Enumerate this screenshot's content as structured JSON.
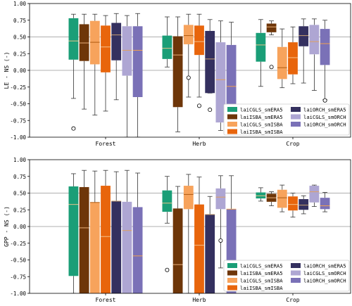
{
  "chart_data": [
    {
      "type": "boxplot",
      "ylabel": "LE - NS (-)",
      "ylim": [
        -1.0,
        1.0
      ],
      "yticks": [
        "1.00",
        "0.75",
        "0.50",
        "0.25",
        "0.00",
        "-0.25",
        "-0.50",
        "-0.75",
        "-1.00"
      ],
      "reference_lines": [
        0.5,
        0.0
      ],
      "categories": [
        "Forest",
        "Herb",
        "Crop"
      ],
      "legend": {
        "placement": "lower-right",
        "columns": 2
      },
      "series": [
        {
          "name": "laiCGLS_smERA5",
          "color": "#1a9e77",
          "median_color": "#e8c28a",
          "boxes": [
            {
              "whislo": -0.42,
              "q1": 0.16,
              "med": 0.44,
              "q3": 0.78,
              "whishi": 0.84,
              "fliers": [
                -0.87
              ]
            },
            {
              "whislo": 0.05,
              "q1": 0.17,
              "med": 0.33,
              "q3": 0.52,
              "whishi": 0.8,
              "fliers": []
            },
            {
              "whislo": -0.24,
              "q1": 0.13,
              "med": 0.38,
              "q3": 0.56,
              "whishi": 0.76,
              "fliers": []
            }
          ]
        },
        {
          "name": "laiISBA_smERA5",
          "color": "#6e3609",
          "median_color": "#e8b07a",
          "boxes": [
            {
              "whislo": -0.58,
              "q1": 0.14,
              "med": 0.41,
              "q3": 0.69,
              "whishi": 0.84,
              "fliers": []
            },
            {
              "whislo": -0.92,
              "q1": -0.55,
              "med": 0.23,
              "q3": 0.51,
              "whishi": 0.8,
              "fliers": []
            },
            {
              "whislo": 0.53,
              "q1": 0.57,
              "med": 0.65,
              "q3": 0.7,
              "whishi": 0.74,
              "fliers": [
                0.05
              ]
            }
          ]
        },
        {
          "name": "laiCGLS_smISBA",
          "color": "#f7a35c",
          "median_color": "#b05a10",
          "boxes": [
            {
              "whislo": -0.67,
              "q1": 0.09,
              "med": 0.42,
              "q3": 0.74,
              "whishi": 0.84,
              "fliers": []
            },
            {
              "whislo": -0.4,
              "q1": 0.39,
              "med": 0.52,
              "q3": 0.68,
              "whishi": 0.84,
              "fliers": [
                -0.11
              ]
            },
            {
              "whislo": -0.26,
              "q1": -0.13,
              "med": 0.04,
              "q3": 0.35,
              "whishi": 0.62,
              "fliers": []
            }
          ]
        },
        {
          "name": "laiISBA_smISBA",
          "color": "#e8650c",
          "median_color": "#f5c08a",
          "boxes": [
            {
              "whislo": -0.61,
              "q1": -0.03,
              "med": 0.35,
              "q3": 0.67,
              "whishi": 0.82,
              "fliers": []
            },
            {
              "whislo": -0.4,
              "q1": 0.23,
              "med": 0.43,
              "q3": 0.67,
              "whishi": 0.84,
              "fliers": [
                -0.53
              ]
            },
            {
              "whislo": -0.2,
              "q1": -0.06,
              "med": 0.19,
              "q3": 0.42,
              "whishi": 0.65,
              "fliers": []
            }
          ]
        },
        {
          "name": "laiORCH_smERA5",
          "color": "#34305f",
          "median_color": "#c8a070",
          "boxes": [
            {
              "whislo": -0.44,
              "q1": 0.15,
              "med": 0.53,
              "q3": 0.71,
              "whishi": 0.85,
              "fliers": []
            },
            {
              "whislo": -0.34,
              "q1": -0.34,
              "med": 0.17,
              "q3": 0.59,
              "whishi": 0.76,
              "fliers": [
                -0.59
              ]
            },
            {
              "whislo": -0.19,
              "q1": 0.36,
              "med": 0.52,
              "q3": 0.66,
              "whishi": 0.77,
              "fliers": []
            }
          ]
        },
        {
          "name": "laiCGLS_smORCH",
          "color": "#aea6d3",
          "median_color": "#e0a060",
          "boxes": [
            {
              "whislo": -1.0,
              "q1": -0.08,
              "med": 0.3,
              "q3": 0.66,
              "whishi": 0.82,
              "fliers": []
            },
            {
              "whislo": -0.9,
              "q1": -0.78,
              "med": -0.14,
              "q3": 0.42,
              "whishi": 0.74,
              "fliers": []
            },
            {
              "whislo": -0.3,
              "q1": 0.24,
              "med": 0.43,
              "q3": 0.68,
              "whishi": 0.77,
              "fliers": []
            }
          ]
        },
        {
          "name": "laiORCH_smORCH",
          "color": "#7a71b7",
          "median_color": "#f0a050",
          "boxes": [
            {
              "whislo": -1.0,
              "q1": -0.4,
              "med": 0.3,
              "q3": 0.66,
              "whishi": 0.85,
              "fliers": []
            },
            {
              "whislo": -0.88,
              "q1": -0.88,
              "med": -0.24,
              "q3": 0.38,
              "whishi": 0.72,
              "fliers": []
            },
            {
              "whislo": -0.44,
              "q1": 0.08,
              "med": 0.4,
              "q3": 0.62,
              "whishi": 0.75,
              "fliers": [
                -0.45
              ]
            }
          ]
        }
      ]
    },
    {
      "type": "boxplot",
      "ylabel": "GPP - NS (-)",
      "ylim": [
        -1.0,
        1.0
      ],
      "yticks": [
        "1.00",
        "0.75",
        "0.50",
        "0.25",
        "0.00",
        "-0.25",
        "-0.50",
        "-0.75",
        "-1.00"
      ],
      "reference_lines": [
        0.5,
        0.0
      ],
      "categories": [
        "Forest",
        "Herb",
        "Crop"
      ],
      "legend": {
        "placement": "lower-right",
        "columns": 2
      },
      "series": [
        {
          "name": "laiCGLS_smERA5",
          "color": "#1a9e77",
          "median_color": "#e8c28a",
          "boxes": [
            {
              "whislo": -1.0,
              "q1": -0.74,
              "med": 0.33,
              "q3": 0.6,
              "whishi": 0.79,
              "fliers": []
            },
            {
              "whislo": 0.05,
              "q1": 0.22,
              "med": 0.35,
              "q3": 0.54,
              "whishi": 0.75,
              "fliers": [
                -0.65
              ]
            },
            {
              "whislo": 0.38,
              "q1": 0.42,
              "med": 0.46,
              "q3": 0.51,
              "whishi": 0.58,
              "fliers": []
            }
          ]
        },
        {
          "name": "laiISBA_smERA5",
          "color": "#6e3609",
          "median_color": "#e8b07a",
          "boxes": [
            {
              "whislo": -1.0,
              "q1": -1.0,
              "med": -0.02,
              "q3": 0.59,
              "whishi": 0.84,
              "fliers": []
            },
            {
              "whislo": -1.0,
              "q1": -1.0,
              "med": -0.57,
              "q3": 0.27,
              "whishi": 0.6,
              "fliers": []
            },
            {
              "whislo": 0.31,
              "q1": 0.37,
              "med": 0.43,
              "q3": 0.49,
              "whishi": 0.52,
              "fliers": []
            }
          ]
        },
        {
          "name": "laiCGLS_smISBA",
          "color": "#f7a35c",
          "median_color": "#b05a10",
          "boxes": [
            {
              "whislo": -1.0,
              "q1": -1.0,
              "med": 0.36,
              "q3": 0.36,
              "whishi": 0.83,
              "fliers": []
            },
            {
              "whislo": -1.0,
              "q1": 0.26,
              "med": 0.48,
              "q3": 0.61,
              "whishi": 0.78,
              "fliers": []
            },
            {
              "whislo": 0.22,
              "q1": 0.28,
              "med": 0.43,
              "q3": 0.55,
              "whishi": 0.62,
              "fliers": []
            }
          ]
        },
        {
          "name": "laiISBA_smISBA",
          "color": "#e8650c",
          "median_color": "#f5c08a",
          "boxes": [
            {
              "whislo": -1.0,
              "q1": -1.0,
              "med": -0.15,
              "q3": 0.61,
              "whishi": 0.84,
              "fliers": []
            },
            {
              "whislo": -1.0,
              "q1": -1.0,
              "med": -0.28,
              "q3": 0.33,
              "whishi": 0.74,
              "fliers": []
            },
            {
              "whislo": 0.14,
              "q1": 0.24,
              "med": 0.33,
              "q3": 0.45,
              "whishi": 0.5,
              "fliers": []
            }
          ]
        },
        {
          "name": "laiORCH_smERA5",
          "color": "#34305f",
          "median_color": "#c8a070",
          "boxes": [
            {
              "whislo": -1.0,
              "q1": -1.0,
              "med": 0.38,
              "q3": 0.38,
              "whishi": 0.82,
              "fliers": []
            },
            {
              "whislo": -1.0,
              "q1": -1.0,
              "med": 0.18,
              "q3": 0.18,
              "whishi": 0.45,
              "fliers": []
            },
            {
              "whislo": 0.19,
              "q1": 0.25,
              "med": 0.32,
              "q3": 0.41,
              "whishi": 0.46,
              "fliers": []
            }
          ]
        },
        {
          "name": "laiCGLS_smORCH",
          "color": "#aea6d3",
          "median_color": "#e0a060",
          "boxes": [
            {
              "whislo": -1.0,
              "q1": -1.0,
              "med": -0.06,
              "q3": 0.37,
              "whishi": 0.84,
              "fliers": []
            },
            {
              "whislo": -0.62,
              "q1": 0.26,
              "med": 0.44,
              "q3": 0.57,
              "whishi": 0.76,
              "fliers": [
                -0.21
              ]
            },
            {
              "whislo": 0.3,
              "q1": 0.36,
              "med": 0.52,
              "q3": 0.61,
              "whishi": 0.62,
              "fliers": []
            }
          ]
        },
        {
          "name": "laiORCH_smORCH",
          "color": "#7a71b7",
          "median_color": "#f0a050",
          "boxes": [
            {
              "whislo": -1.0,
              "q1": -1.0,
              "med": -0.44,
              "q3": 0.29,
              "whishi": 0.8,
              "fliers": []
            },
            {
              "whislo": -1.0,
              "q1": -1.0,
              "med": 0.26,
              "q3": 0.26,
              "whishi": 0.76,
              "fliers": []
            },
            {
              "whislo": 0.22,
              "q1": 0.26,
              "med": 0.31,
              "q3": 0.43,
              "whishi": 0.51,
              "fliers": []
            }
          ]
        }
      ]
    }
  ]
}
